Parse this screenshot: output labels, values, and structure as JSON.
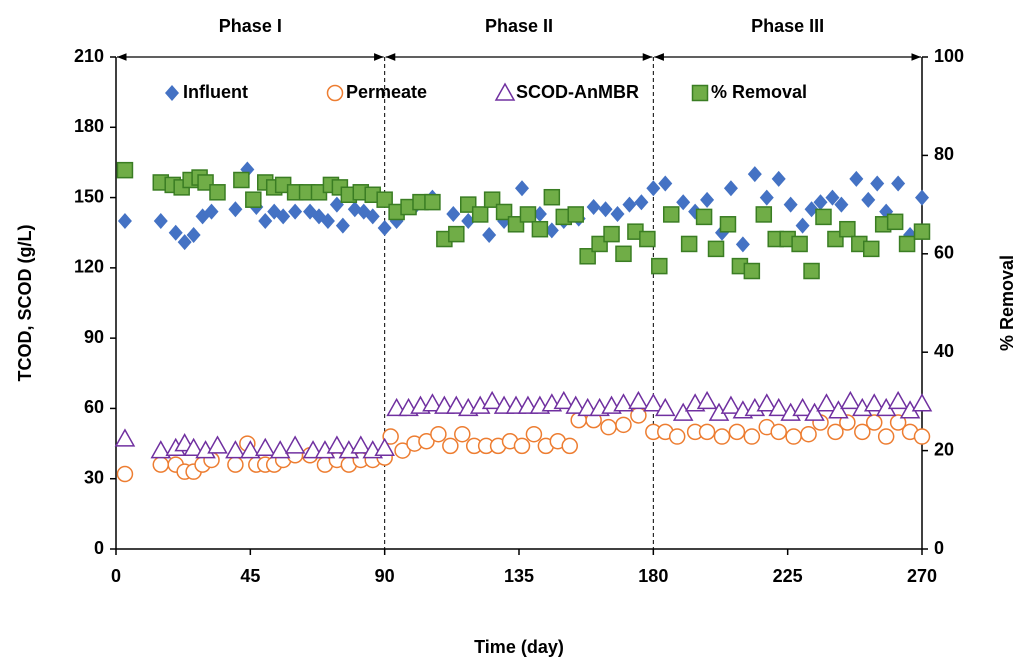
{
  "chart_data": {
    "type": "scatter",
    "xlabel": "Time (day)",
    "ylabel": "TCOD, SCOD (g/L)",
    "y2label": "% Removal",
    "xlim": [
      0,
      270
    ],
    "xticks": [
      0,
      45,
      90,
      135,
      180,
      225,
      270
    ],
    "ylim": [
      0,
      210
    ],
    "yticks": [
      0,
      30,
      60,
      90,
      120,
      150,
      180,
      210
    ],
    "y2lim": [
      0,
      100
    ],
    "y2ticks": [
      0,
      20,
      40,
      60,
      80,
      100
    ],
    "legend": "top",
    "phases": [
      {
        "label": "Phase I",
        "start": 0,
        "end": 90
      },
      {
        "label": "Phase II",
        "start": 90,
        "end": 180
      },
      {
        "label": "Phase III",
        "start": 180,
        "end": 270
      }
    ],
    "series": [
      {
        "name": "Influent",
        "marker": "diamond",
        "color": "#4472c4",
        "x": [
          3,
          15,
          20,
          23,
          26,
          29,
          32,
          40,
          44,
          47,
          50,
          53,
          56,
          60,
          65,
          68,
          71,
          74,
          76,
          80,
          83,
          86,
          90,
          94,
          100,
          106,
          113,
          118,
          125,
          130,
          136,
          142,
          146,
          150,
          155,
          160,
          164,
          168,
          172,
          176,
          180,
          184,
          190,
          194,
          198,
          203,
          206,
          210,
          214,
          218,
          222,
          226,
          230,
          233,
          236,
          240,
          243,
          248,
          252,
          255,
          258,
          262,
          266,
          270
        ],
        "values": [
          140,
          140,
          135,
          131,
          134,
          142,
          144,
          145,
          162,
          146,
          140,
          144,
          142,
          144,
          144,
          142,
          140,
          147,
          138,
          145,
          144,
          142,
          137,
          140,
          146,
          150,
          143,
          140,
          134,
          140,
          154,
          143,
          136,
          140,
          141,
          146,
          145,
          143,
          147,
          148,
          154,
          156,
          148,
          144,
          149,
          135,
          154,
          130,
          160,
          150,
          158,
          147,
          138,
          145,
          148,
          150,
          147,
          158,
          149,
          156,
          144,
          156,
          134,
          150
        ]
      },
      {
        "name": "Permeate",
        "marker": "circle",
        "color": "#ed7d31",
        "x": [
          3,
          15,
          20,
          23,
          26,
          29,
          32,
          40,
          44,
          47,
          50,
          53,
          56,
          60,
          65,
          70,
          74,
          78,
          82,
          86,
          90,
          92,
          96,
          100,
          104,
          108,
          112,
          116,
          120,
          124,
          128,
          132,
          136,
          140,
          144,
          148,
          152,
          155,
          160,
          165,
          170,
          175,
          180,
          184,
          188,
          194,
          198,
          203,
          208,
          213,
          218,
          222,
          227,
          232,
          236,
          241,
          245,
          250,
          254,
          258,
          262,
          266,
          270
        ],
        "values": [
          32,
          36,
          36,
          33,
          33,
          36,
          38,
          36,
          45,
          36,
          36,
          36,
          38,
          40,
          40,
          36,
          38,
          36,
          38,
          38,
          39,
          48,
          42,
          45,
          46,
          49,
          44,
          49,
          44,
          44,
          44,
          46,
          44,
          49,
          44,
          46,
          44,
          55,
          55,
          52,
          53,
          57,
          50,
          50,
          48,
          50,
          50,
          48,
          50,
          48,
          52,
          50,
          48,
          49,
          54,
          50,
          54,
          50,
          54,
          48,
          54,
          50,
          48
        ]
      },
      {
        "name": "SCOD-AnMBR",
        "marker": "triangle",
        "color": "#7030a0",
        "x": [
          3,
          15,
          20,
          23,
          26,
          30,
          34,
          40,
          45,
          50,
          55,
          60,
          66,
          70,
          74,
          78,
          82,
          86,
          90,
          94,
          98,
          102,
          106,
          110,
          114,
          118,
          122,
          126,
          130,
          134,
          138,
          142,
          146,
          150,
          154,
          158,
          162,
          166,
          170,
          175,
          180,
          184,
          190,
          194,
          198,
          202,
          206,
          210,
          214,
          218,
          222,
          226,
          230,
          234,
          238,
          242,
          246,
          250,
          254,
          258,
          262,
          266,
          270
        ],
        "values": [
          47,
          42,
          43,
          45,
          43,
          42,
          44,
          42,
          42,
          43,
          42,
          44,
          42,
          42,
          44,
          42,
          44,
          42,
          43,
          60,
          60,
          61,
          62,
          61,
          61,
          60,
          61,
          63,
          61,
          61,
          61,
          61,
          62,
          63,
          61,
          60,
          60,
          61,
          62,
          63,
          62,
          60,
          58,
          62,
          63,
          58,
          61,
          59,
          60,
          62,
          60,
          58,
          60,
          58,
          62,
          59,
          63,
          60,
          62,
          60,
          63,
          59,
          62
        ]
      },
      {
        "name": "% Removal",
        "marker": "square",
        "color": "#70ad47",
        "axis": "y2",
        "x": [
          3,
          15,
          19,
          22,
          25,
          28,
          30,
          34,
          42,
          46,
          50,
          53,
          56,
          60,
          64,
          68,
          72,
          75,
          78,
          82,
          86,
          90,
          94,
          98,
          102,
          106,
          110,
          114,
          118,
          122,
          126,
          130,
          134,
          138,
          142,
          146,
          150,
          154,
          158,
          162,
          166,
          170,
          174,
          178,
          182,
          186,
          192,
          197,
          201,
          205,
          209,
          213,
          217,
          221,
          225,
          229,
          233,
          237,
          241,
          245,
          249,
          253,
          257,
          261,
          265,
          270
        ],
        "values": [
          77,
          74.5,
          74,
          73.5,
          75,
          75.5,
          74.5,
          72.5,
          75,
          71,
          74.5,
          73.5,
          74,
          72.5,
          72.5,
          72.5,
          74,
          73.5,
          72,
          72.5,
          72,
          71,
          68.5,
          69.5,
          70.5,
          70.5,
          63,
          64,
          70,
          68,
          71,
          68.5,
          66,
          68,
          65,
          71.5,
          67.5,
          68,
          59.5,
          62,
          64,
          60,
          64.5,
          63,
          57.5,
          68,
          62,
          67.5,
          61,
          66,
          57.5,
          56.5,
          68,
          63,
          63,
          62,
          56.5,
          67.5,
          63,
          65,
          62,
          61,
          66,
          66.5,
          62,
          64.5
        ]
      }
    ]
  }
}
